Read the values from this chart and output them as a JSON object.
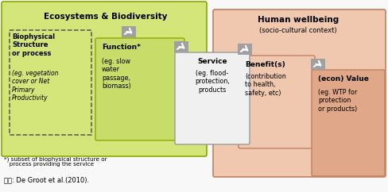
{
  "title_eco": "Ecosystems & Biodiversity",
  "title_human": "Human wellbeing",
  "subtitle_human": "(socio-cultural context)",
  "eco_box_color": "#d4e57a",
  "eco_box_edge": "#8aaa00",
  "human_box_color": "#f0c8b0",
  "human_box_edge": "#c08060",
  "func_box_color": "#c8dc6a",
  "func_box_edge": "#8aaa00",
  "svc_box_color": "#f0f0f0",
  "svc_box_edge": "#999999",
  "ben_box_color": "#f0c8b0",
  "ben_box_edge": "#c08060",
  "val_box_color": "#e0a888",
  "val_box_edge": "#c08060",
  "bio_dash_color": "#555555",
  "arrow_color": "#888888",
  "bg_color": "#f8f8f8",
  "biophysical_bold": "Biophysical\nStructure\nor process",
  "biophysical_italic": "(eg. vegetation\ncover or Net\nPrimary\nProductivity",
  "function_bold": "Function*",
  "function_body": "(eg. slow\nwater\npassage,\nbiomass)",
  "service_bold": "Service",
  "service_body": "(eg. flood-\nprotection,\nproducts",
  "benefit_bold": "Benefit(s)",
  "benefit_body": "(contribution\nto health,\nsafety, etc)",
  "value_bold": "(econ) Value",
  "value_body": "(eg. WTP for\nprotection\nor products)",
  "footnote": "*) subset of biophysical structure or\n   process providing the service",
  "citation": "焸료: De Groot et al.(2010)."
}
